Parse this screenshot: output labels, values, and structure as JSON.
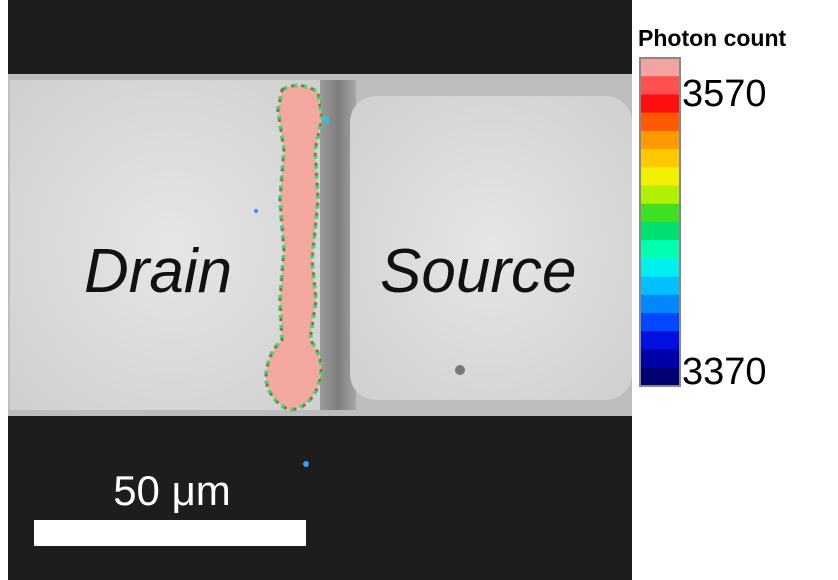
{
  "image": {
    "labels": {
      "drain": "Drain",
      "source": "Source"
    },
    "scale_bar": "50 μm"
  },
  "colorbar": {
    "title": "Photon count",
    "max": "3570",
    "min": "3370"
  }
}
